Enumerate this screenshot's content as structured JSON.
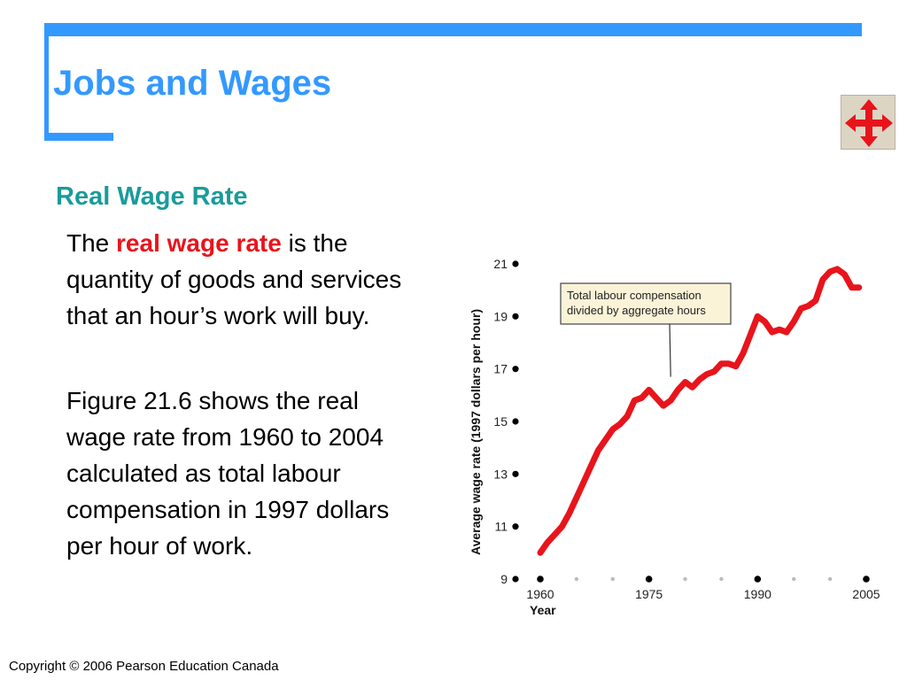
{
  "slide": {
    "title": "Jobs and Wages",
    "subtitle": "Real Wage Rate",
    "para1": {
      "prefix": "The ",
      "highlight": "real wage rate",
      "suffix": " is the quantity of goods and services that an hour’s work will buy."
    },
    "para2": "Figure 21.6 shows the real wage rate from 1960 to 2004 calculated as total labour compensation in 1997 dollars per hour of work.",
    "copyright": "Copyright © 2006 Pearson Education Canada"
  },
  "nav": {
    "icon": "four-arrows-icon",
    "color": "#e8141c"
  },
  "chart_data": {
    "type": "line",
    "xlabel": "Year",
    "ylabel": "Average wage rate (1997 dollars per hour)",
    "xlim": [
      1960,
      2005
    ],
    "ylim": [
      9,
      21
    ],
    "x_ticks": [
      1960,
      1975,
      1990,
      2005
    ],
    "y_ticks": [
      9,
      11,
      13,
      15,
      17,
      19,
      21
    ],
    "annotation": {
      "lines": [
        "Total labour compensation",
        "divided by aggregate hours"
      ],
      "points_to": [
        1978,
        16.7
      ]
    },
    "series": [
      {
        "color": "#e8141c",
        "x": [
          1960,
          1961,
          1962,
          1963,
          1964,
          1965,
          1966,
          1967,
          1968,
          1969,
          1970,
          1971,
          1972,
          1973,
          1974,
          1975,
          1976,
          1977,
          1978,
          1979,
          1980,
          1981,
          1982,
          1983,
          1984,
          1985,
          1986,
          1987,
          1988,
          1989,
          1990,
          1991,
          1992,
          1993,
          1994,
          1995,
          1996,
          1997,
          1998,
          1999,
          2000,
          2001,
          2002,
          2003,
          2004
        ],
        "values": [
          10.0,
          10.4,
          10.7,
          11.0,
          11.5,
          12.1,
          12.7,
          13.3,
          13.9,
          14.3,
          14.7,
          14.9,
          15.2,
          15.8,
          15.9,
          16.2,
          15.9,
          15.6,
          15.8,
          16.2,
          16.5,
          16.3,
          16.6,
          16.8,
          16.9,
          17.2,
          17.2,
          17.1,
          17.6,
          18.3,
          19.0,
          18.8,
          18.4,
          18.5,
          18.4,
          18.8,
          19.3,
          19.4,
          19.6,
          20.4,
          20.7,
          20.8,
          20.6,
          20.1,
          20.1
        ]
      }
    ]
  }
}
